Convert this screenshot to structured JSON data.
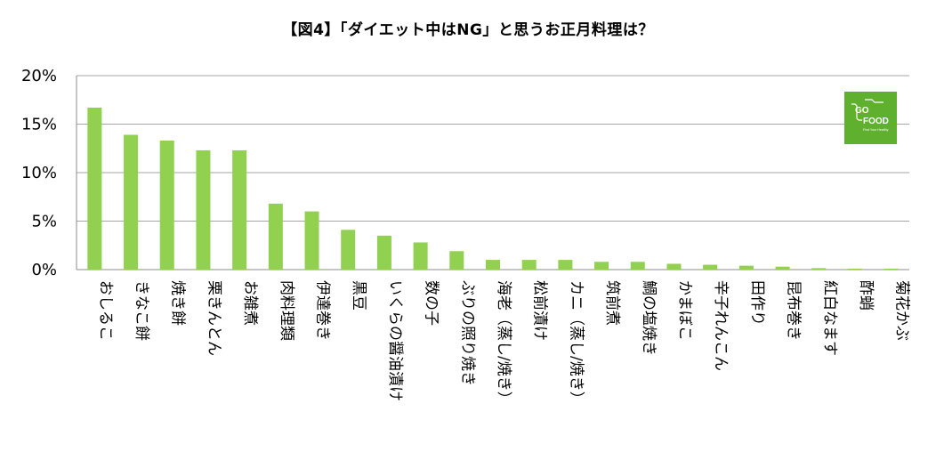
{
  "chart_data": {
    "type": "bar",
    "title": "【図4】「ダイエット中はNG」と思うお正月料理は？",
    "xlabel": "",
    "ylabel": "",
    "ylim": [
      0,
      20
    ],
    "yticks": [
      "0%",
      "5%",
      "10%",
      "15%",
      "20%"
    ],
    "categories": [
      "おしるこ",
      "きなこ餅",
      "焼き餅",
      "栗きんとん",
      "お雑煮",
      "肉料理類",
      "伊達巻き",
      "黒豆",
      "いくらの醤油漬け",
      "数の子",
      "ぶりの照り焼き",
      "海老（蒸し/焼き）",
      "松前漬け",
      "カニ（蒸し/焼き）",
      "筑前煮",
      "鯛の塩焼き",
      "かまぼこ",
      "辛子れんこん",
      "田作り",
      "昆布巻き",
      "紅白なます",
      "酢蛸",
      "菊花かぶ"
    ],
    "values": [
      16.7,
      13.9,
      13.3,
      12.3,
      12.3,
      6.8,
      6.0,
      4.1,
      3.5,
      2.8,
      1.9,
      1.0,
      1.0,
      1.0,
      0.8,
      0.8,
      0.6,
      0.5,
      0.4,
      0.3,
      0.15,
      0.1,
      0.1
    ],
    "grid": true,
    "bar_color": "#92d050"
  },
  "logo": {
    "line1": "GO",
    "line2": "FOOD",
    "tagline": "Find Your Healthy",
    "color": "#5fb02f"
  }
}
